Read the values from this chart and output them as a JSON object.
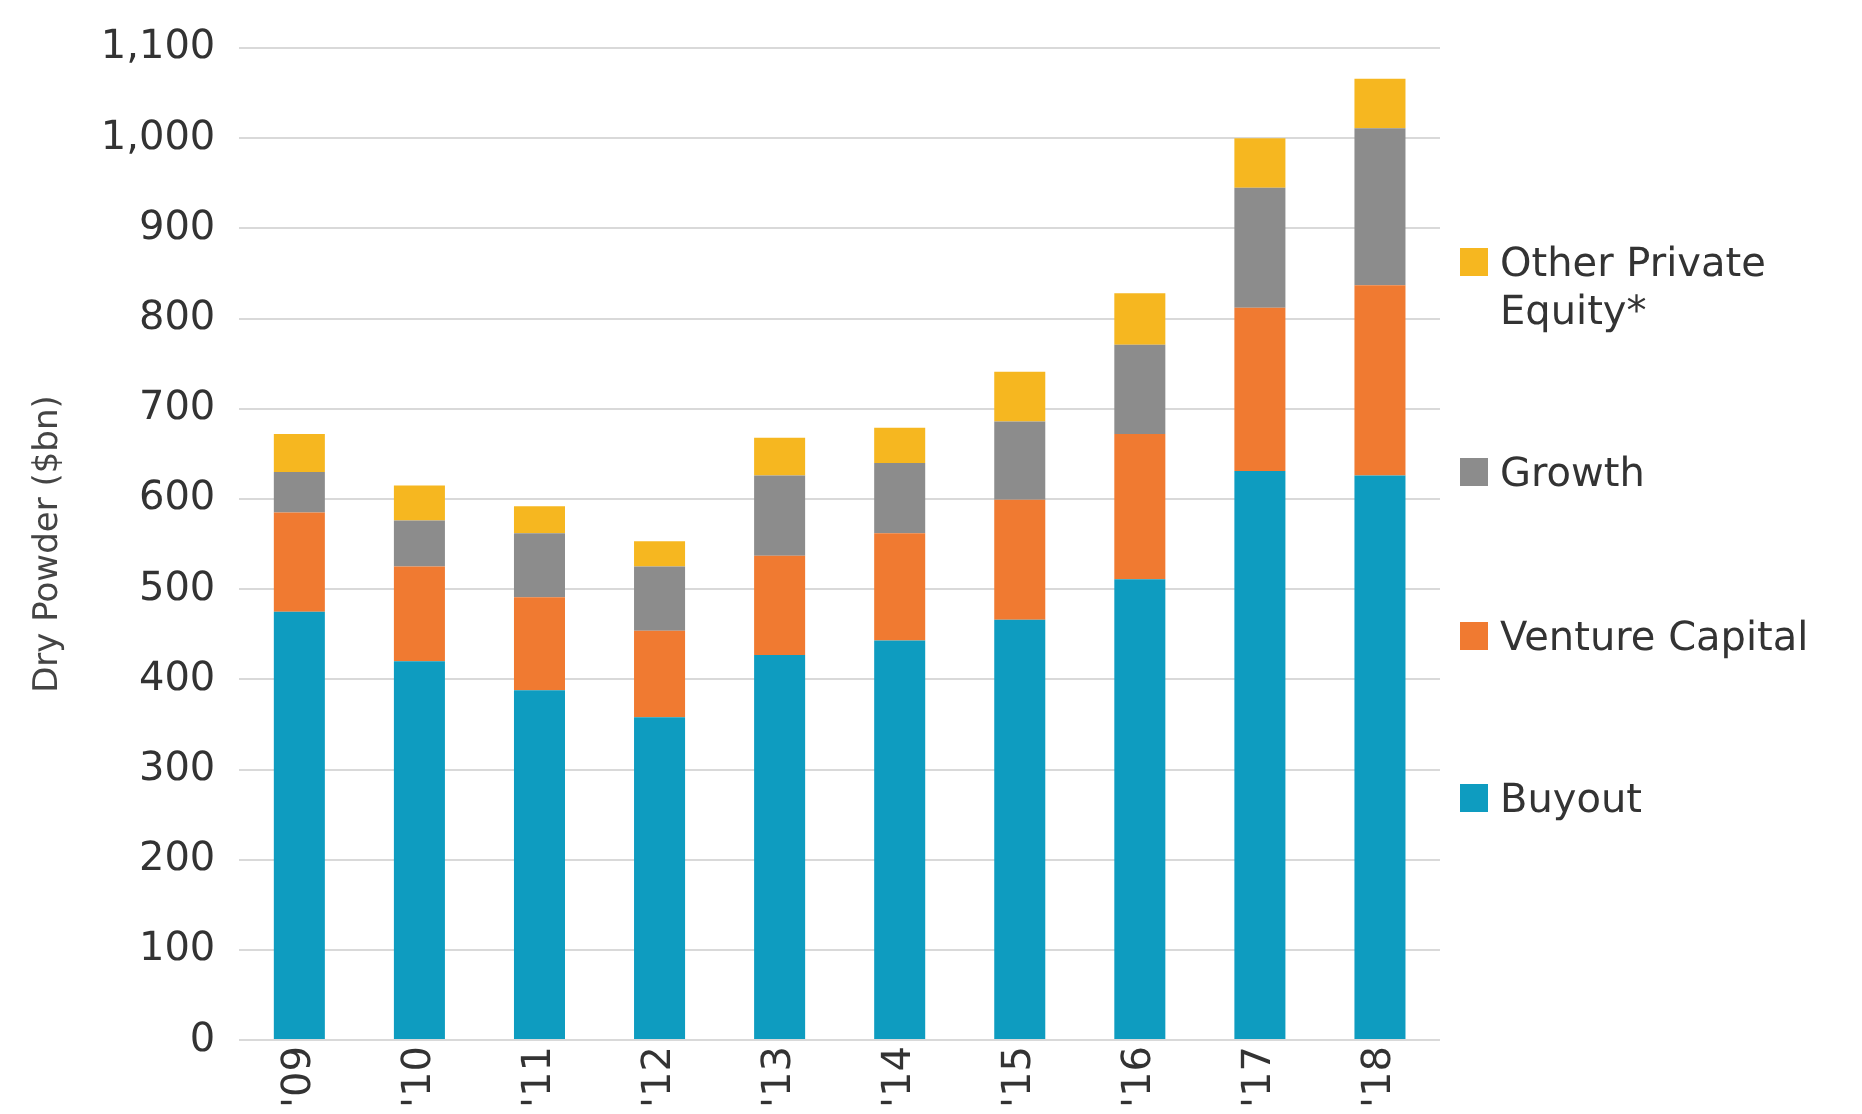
{
  "chart_data": {
    "type": "bar",
    "stacked": true,
    "ylabel": "Dry Powder ($bn)",
    "categories": [
      "'09",
      "'10",
      "'11",
      "'12",
      "'13",
      "'14",
      "'15",
      "'16",
      "'17",
      "'18"
    ],
    "series": [
      {
        "name": "Buyout",
        "color": "#0e9cc0",
        "values": [
          475,
          420,
          388,
          358,
          427,
          443,
          466,
          511,
          631,
          626
        ]
      },
      {
        "name": "Venture Capital",
        "color": "#f07a31",
        "values": [
          110,
          105,
          103,
          96,
          110,
          119,
          133,
          161,
          181,
          211
        ]
      },
      {
        "name": "Growth",
        "color": "#8c8c8c",
        "values": [
          45,
          51,
          71,
          71,
          89,
          78,
          87,
          99,
          133,
          174
        ]
      },
      {
        "name": "Other Private Equity*",
        "color": "#f6b720",
        "values": [
          42,
          39,
          30,
          28,
          42,
          39,
          55,
          57,
          55,
          55
        ]
      }
    ],
    "ylim": [
      0,
      1100
    ],
    "yticks": [
      0,
      100,
      200,
      300,
      400,
      500,
      600,
      700,
      800,
      900,
      {
        "value": 1000,
        "label": "1,000"
      },
      {
        "value": 1100,
        "label": "1,100"
      }
    ],
    "grid": "y",
    "legend": "right"
  }
}
